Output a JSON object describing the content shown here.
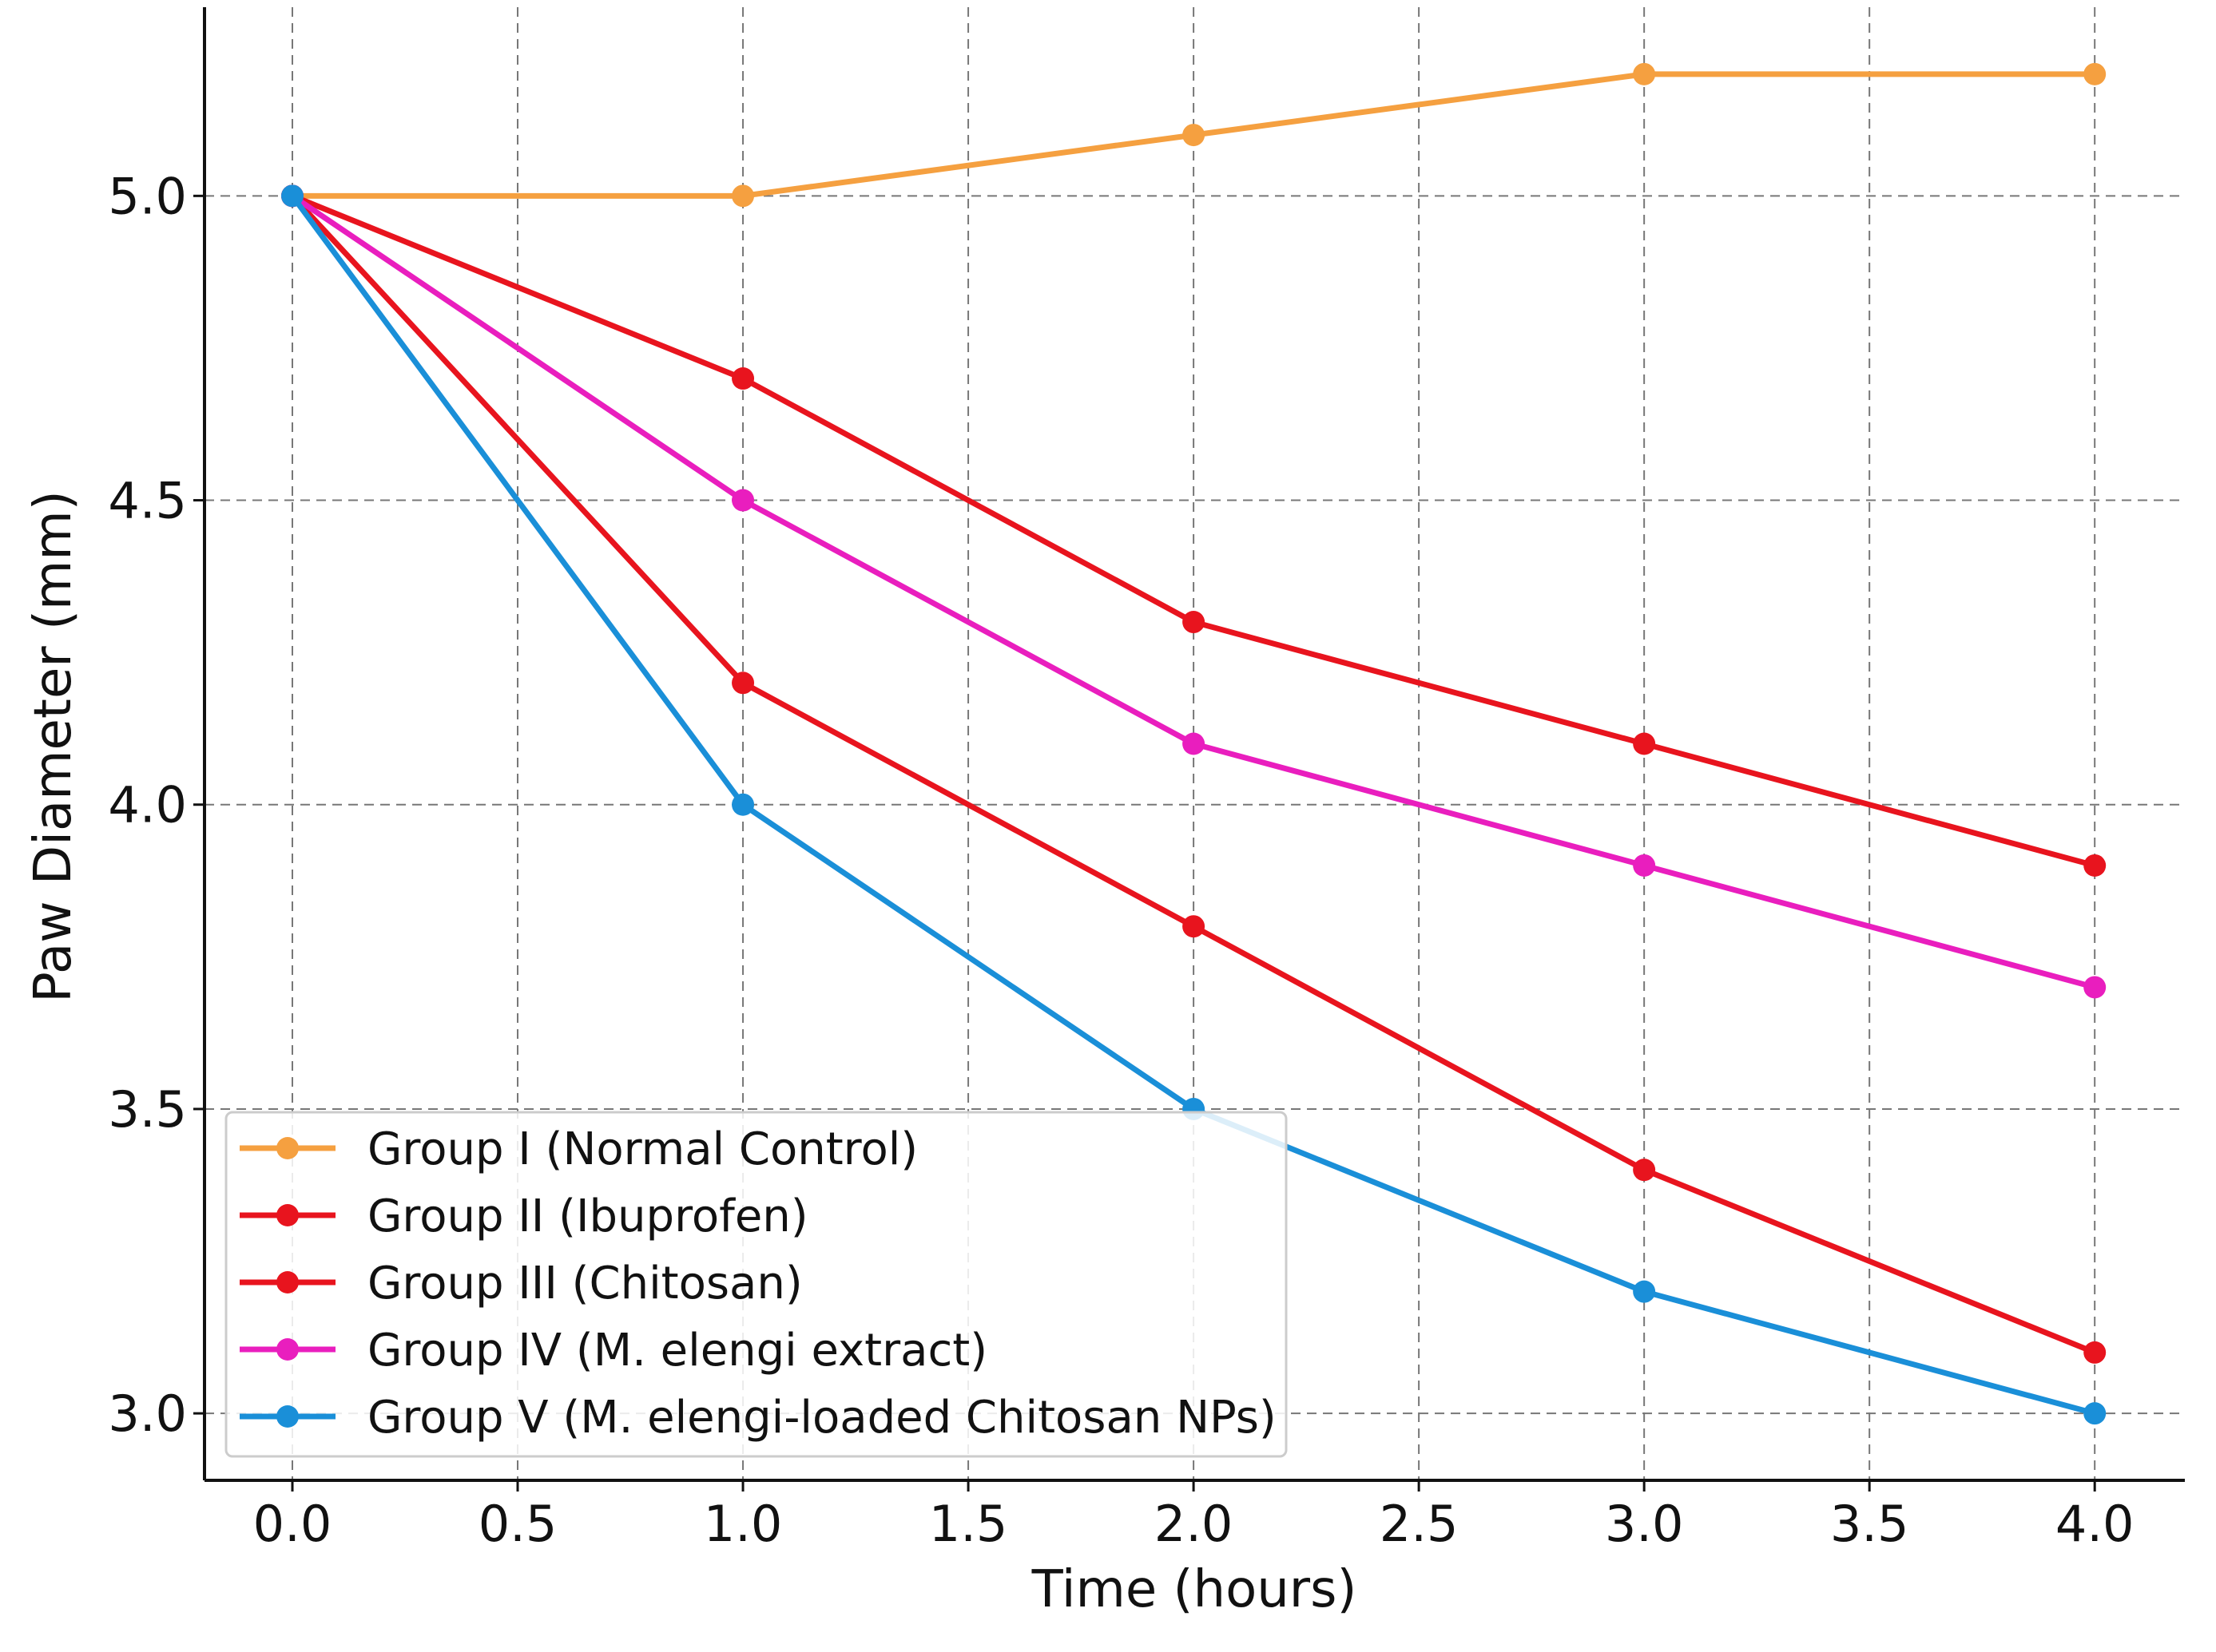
{
  "chart_data": {
    "type": "line",
    "title": "",
    "xlabel": "Time (hours)",
    "ylabel": "Paw Diameter (mm)",
    "xlim": [
      -0.195,
      4.2
    ],
    "ylim": [
      2.89,
      5.31
    ],
    "xticks": [
      "0.0",
      "0.5",
      "1.0",
      "1.5",
      "2.0",
      "2.5",
      "3.0",
      "3.5",
      "4.0"
    ],
    "yticks": [
      "3.0",
      "3.5",
      "4.0",
      "4.5",
      "5.0"
    ],
    "grid": true,
    "legend_position": "bottom-left",
    "x": [
      0,
      1,
      2,
      3,
      4
    ],
    "series": [
      {
        "name": "Group I (Normal Control)",
        "color": "#F5A040",
        "values": [
          5.0,
          5.0,
          5.1,
          5.2,
          5.2
        ]
      },
      {
        "name": "Group II (Ibuprofen)",
        "color": "#E8141E",
        "values": [
          5.0,
          4.7,
          4.3,
          4.1,
          3.9
        ]
      },
      {
        "name": "Group III (Chitosan)",
        "color": "#E8141E",
        "values": [
          5.0,
          4.2,
          3.8,
          3.4,
          3.1
        ]
      },
      {
        "name": "Group IV (M. elengi extract)",
        "color": "#E91EBE",
        "values": [
          5.0,
          4.5,
          4.1,
          3.9,
          3.7
        ]
      },
      {
        "name": "Group V (M. elengi-loaded Chitosan NPs)",
        "color": "#1A8FD8",
        "values": [
          5.0,
          4.0,
          3.5,
          3.2,
          3.0
        ]
      }
    ]
  }
}
